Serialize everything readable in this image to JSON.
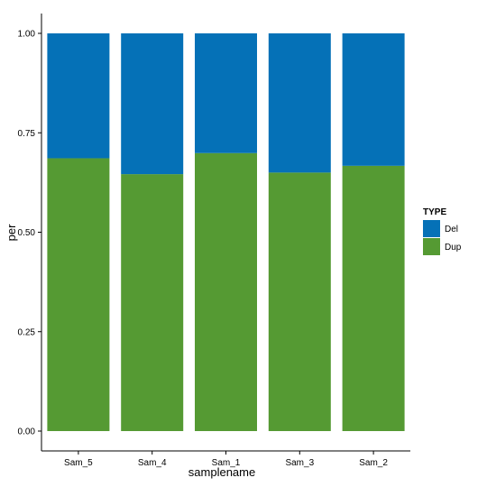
{
  "chart_data": {
    "type": "bar",
    "stacked": true,
    "categories": [
      "Sam_5",
      "Sam_4",
      "Sam_1",
      "Sam_3",
      "Sam_2"
    ],
    "series": [
      {
        "name": "Dup",
        "color": "#559a33",
        "values": [
          0.686,
          0.646,
          0.699,
          0.65,
          0.667
        ]
      },
      {
        "name": "Del",
        "color": "#0571b7",
        "values": [
          0.314,
          0.354,
          0.301,
          0.35,
          0.333
        ]
      }
    ],
    "xlabel": "samplename",
    "ylabel": "per",
    "ylim": [
      0,
      1
    ],
    "yticks": [
      0.0,
      0.25,
      0.5,
      0.75,
      1.0
    ],
    "ytick_labels": [
      "0.00",
      "0.25",
      "0.50",
      "0.75",
      "1.00"
    ],
    "grid": false,
    "legend": {
      "title": "TYPE",
      "position": "right",
      "entries": [
        {
          "label": "Del",
          "color": "#0571b7"
        },
        {
          "label": "Dup",
          "color": "#559a33"
        }
      ]
    }
  }
}
